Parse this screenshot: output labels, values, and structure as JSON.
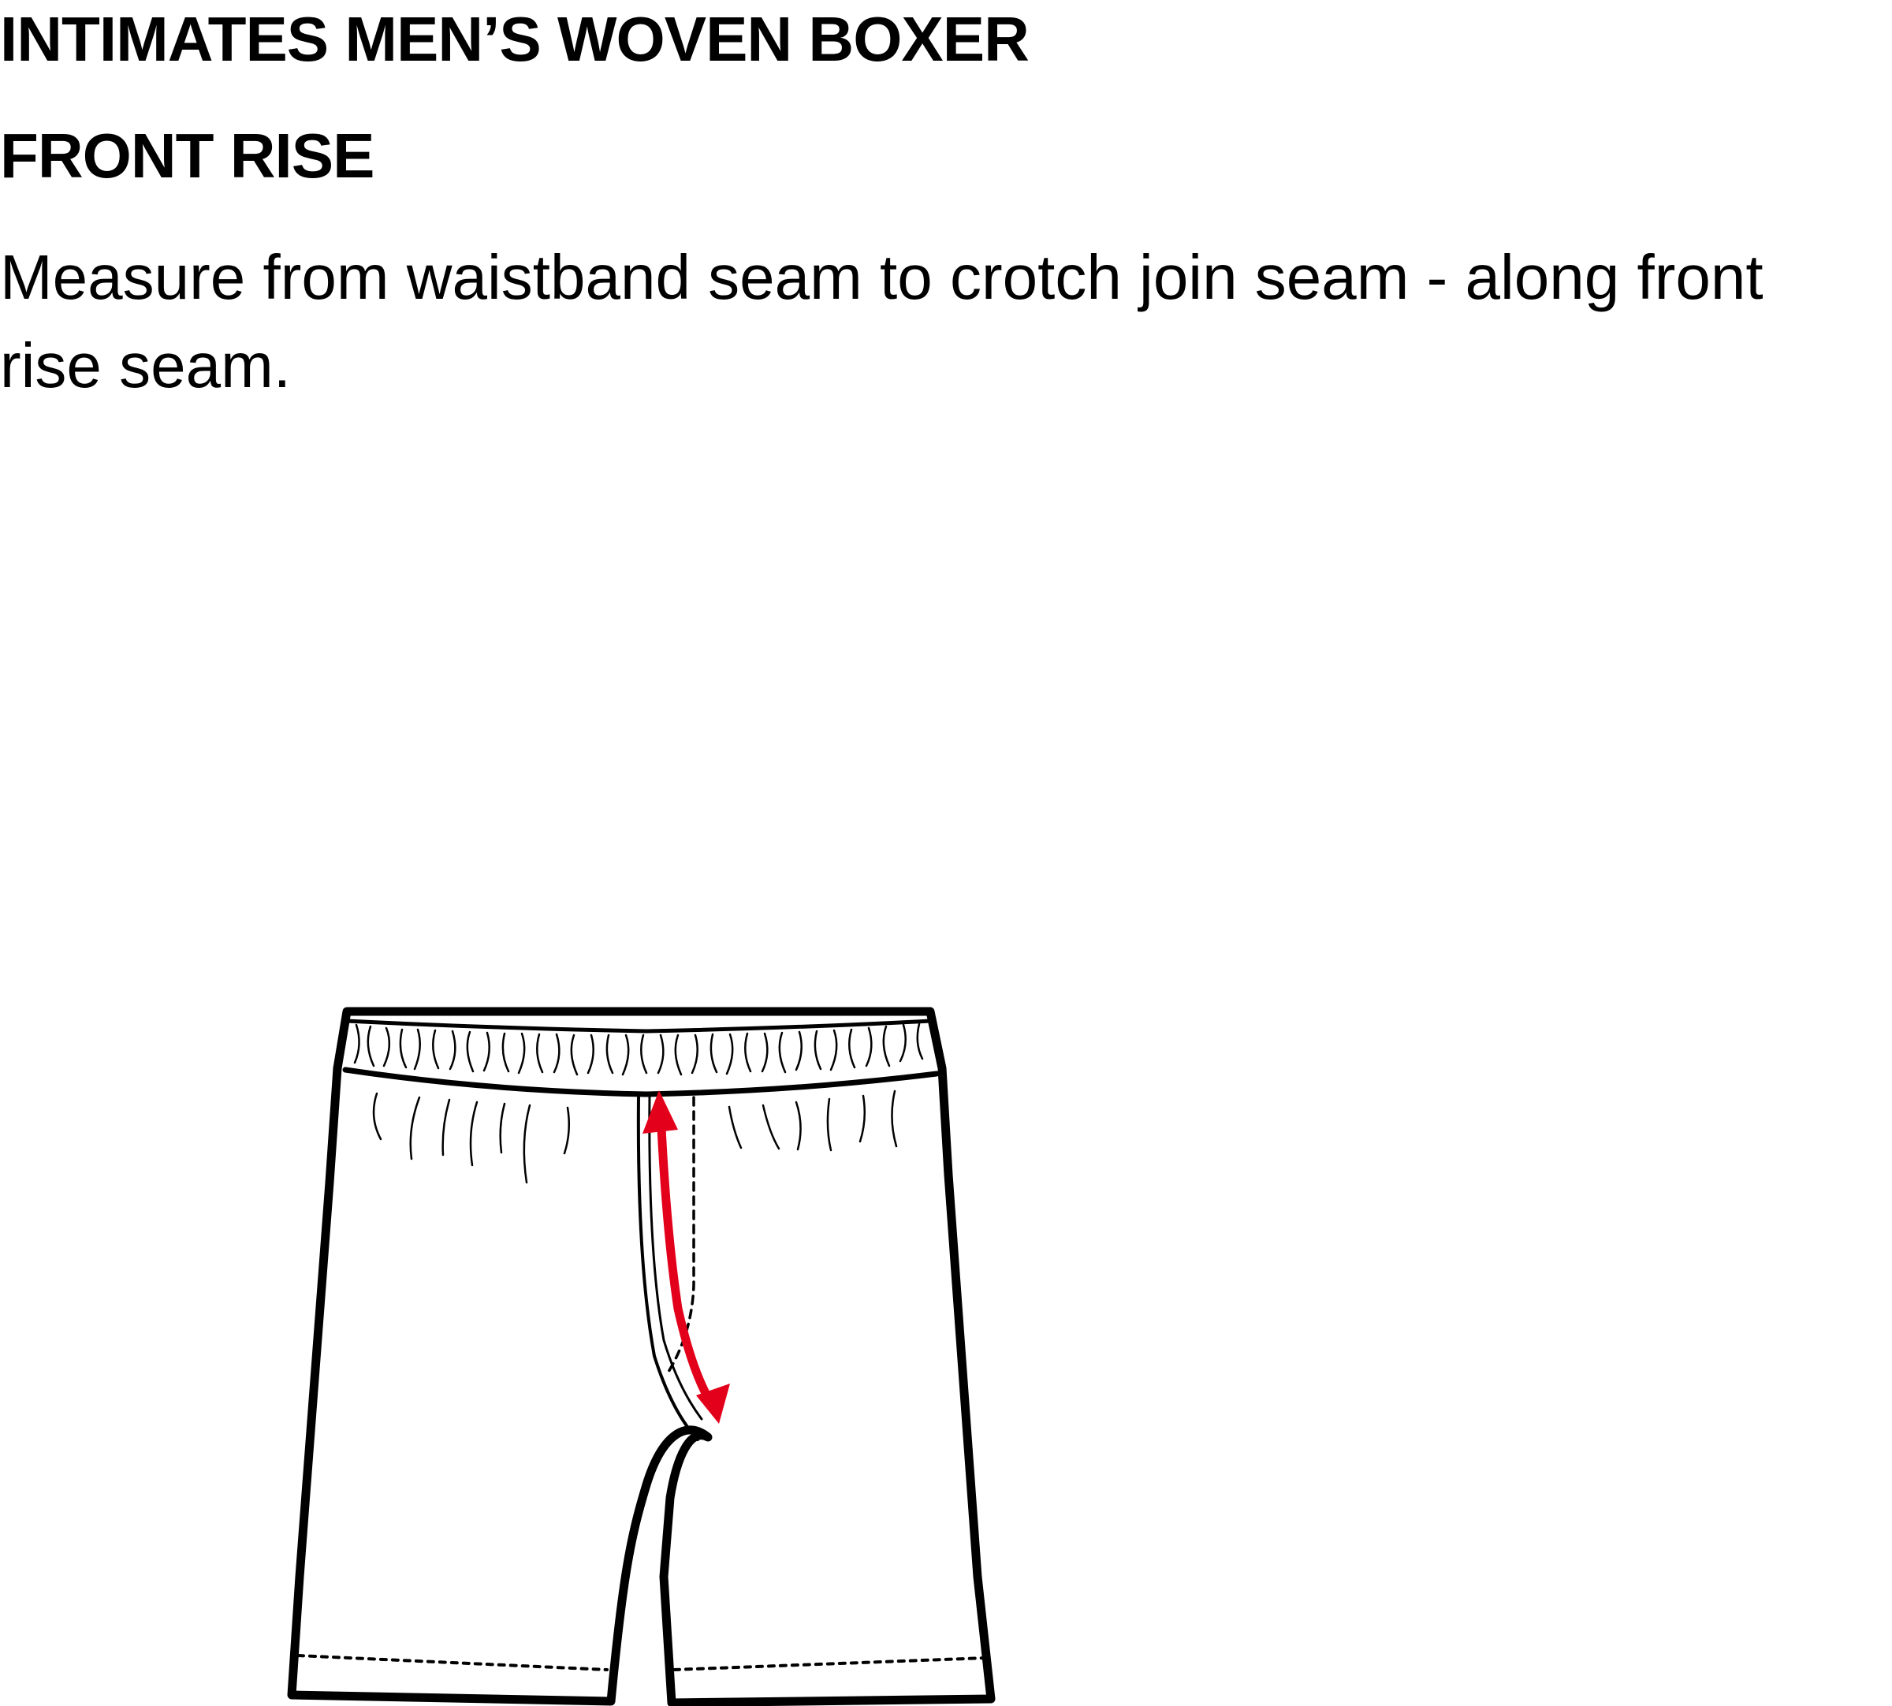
{
  "heading": {
    "title": "INTIMATES MEN’S WOVEN BOXER",
    "subtitle": "FRONT RISE"
  },
  "instructions": {
    "text": "Measure from waistband seam to crotch join seam - along front rise seam."
  },
  "diagram": {
    "garment_icon": "boxer-shorts-front-icon",
    "measurement_icon": "double-headed-arrow-icon",
    "colors": {
      "outline": "#000000",
      "fill": "#ffffff",
      "measurement_arrow": "#e2001a"
    }
  }
}
